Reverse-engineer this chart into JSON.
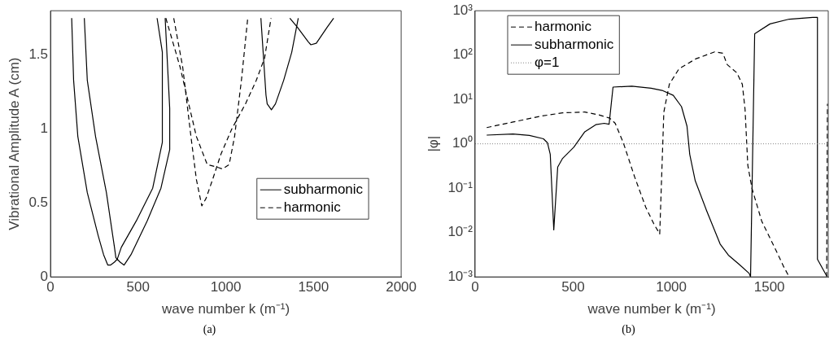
{
  "chart_data": [
    {
      "type": "line",
      "xlabel": "wave number k (m⁻¹)",
      "ylabel": "Vibrational Amplitude A (cm)",
      "xlim": [
        0,
        2000
      ],
      "xticks": [
        0,
        500,
        1000,
        1500,
        2000
      ],
      "ylim": [
        0,
        1.8
      ],
      "yticks": [
        0,
        0.5,
        1,
        1.5
      ],
      "grid": false,
      "legend": "right",
      "marker": "none",
      "annotations": [
        "(a)"
      ],
      "series": [
        {
          "name": "subharmonic",
          "color": "#000000",
          "line_style": "solid",
          "x": [
            121,
            132,
            156,
            210,
            272,
            303,
            327,
            342,
            365,
            381,
            404,
            490,
            583,
            638,
            638,
            608,
            null,
            193,
            210,
            257,
            319,
            350,
            365,
            373,
            397,
            420,
            459,
            552,
            630,
            680,
            680,
            654,
            null,
            1200,
            1229,
            1236,
            1260,
            1283,
            1330,
            1376,
            1413,
            null,
            1365,
            1407,
            1470,
            1485,
            1516,
            1579,
            1615
          ],
          "values": [
            1.75,
            1.33,
            0.95,
            0.57,
            0.28,
            0.15,
            0.08,
            0.08,
            0.1,
            0.12,
            0.2,
            0.38,
            0.6,
            0.91,
            1.52,
            1.75,
            null,
            1.75,
            1.33,
            0.95,
            0.57,
            0.32,
            0.2,
            0.13,
            0.1,
            0.08,
            0.15,
            0.38,
            0.6,
            0.86,
            1.14,
            1.75,
            null,
            1.75,
            1.23,
            1.17,
            1.13,
            1.17,
            1.33,
            1.52,
            1.75,
            null,
            1.75,
            1.69,
            1.59,
            1.57,
            1.58,
            1.69,
            1.75
          ]
        },
        {
          "name": "harmonic",
          "color": "#000000",
          "line_style": "dashed",
          "x": [
            703,
            754,
            801,
            832,
            863,
            887,
            925,
            972,
            1034,
            1112,
            1174,
            1221,
            1258,
            null,
            658,
            739,
            832,
            894,
            956,
            980,
            1019,
            1050,
            1089,
            1125
          ],
          "values": [
            1.75,
            1.42,
            0.95,
            0.66,
            0.48,
            0.53,
            0.66,
            0.83,
            1.0,
            1.17,
            1.33,
            1.48,
            1.75,
            null,
            1.75,
            1.42,
            0.95,
            0.76,
            0.74,
            0.73,
            0.76,
            0.95,
            1.33,
            1.75
          ]
        }
      ]
    },
    {
      "type": "line",
      "xlabel": "wave number k (m⁻¹)",
      "ylabel": "|φ|",
      "log": "y",
      "xlim": [
        0,
        1800
      ],
      "xticks": [
        0,
        500,
        1000,
        1500
      ],
      "ylim": [
        0.001,
        1000
      ],
      "yticks": [
        {
          "value": 0.001,
          "label": "10⁻³"
        },
        {
          "value": 0.01,
          "label": "10⁻²"
        },
        {
          "value": 0.1,
          "label": "10⁻¹"
        },
        {
          "value": 1,
          "label": "10⁰"
        },
        {
          "value": 10,
          "label": "10¹"
        },
        {
          "value": 100,
          "label": "10²"
        },
        {
          "value": 1000,
          "label": "10³"
        }
      ],
      "grid": false,
      "legend": "top left",
      "marker": "none",
      "annotations": [
        "(b)"
      ],
      "ref_lines": [
        {
          "axis": "y",
          "value": 1,
          "label": "φ=1",
          "color": "#808080",
          "line_style": "dotted"
        }
      ],
      "series": [
        {
          "name": "harmonic",
          "color": "#000000",
          "line_style": "dashed",
          "x": [
            59,
            193,
            334,
            446,
            559,
            630,
            686,
            714,
            756,
            813,
            870,
            912,
            941,
            962,
            990,
            1039,
            1124,
            1221,
            1263,
            1285,
            1334,
            1362,
            1376,
            1390,
            1411,
            1461,
            1531,
            1573,
            1601,
            null,
            1792,
            1796
          ],
          "values": [
            2.32,
            3.1,
            4.2,
            5.0,
            5.2,
            4.5,
            3.8,
            2.9,
            1.04,
            0.18,
            0.037,
            0.0154,
            0.0093,
            5.2,
            22,
            49,
            82,
            118,
            110,
            61,
            40,
            22,
            6,
            0.33,
            0.1,
            0.018,
            0.0042,
            0.0017,
            0.001,
            null,
            0.001,
            8
          ]
        },
        {
          "name": "subharmonic",
          "color": "#000000",
          "line_style": "solid",
          "x": [
            59,
            193,
            277,
            348,
            369,
            383,
            401,
            421,
            446,
            503,
            559,
            615,
            658,
            683,
            703,
            799,
            897,
            953,
            1010,
            1052,
            1080,
            1094,
            1122,
            1179,
            1249,
            1291,
            1347,
            1397,
            1404,
            1425,
            1503,
            1601,
            1721,
            1745,
            1745,
            1792
          ],
          "values": [
            1.57,
            1.66,
            1.55,
            1.3,
            1.05,
            0.58,
            0.0115,
            0.3,
            0.47,
            0.84,
            1.87,
            2.7,
            2.9,
            2.77,
            19,
            20,
            18,
            16,
            12.4,
            6.9,
            2.5,
            0.58,
            0.147,
            0.032,
            0.0055,
            0.0031,
            0.0019,
            0.0012,
            0.001,
            303,
            505,
            646,
            710,
            710,
            0.0025,
            0.00105
          ]
        }
      ]
    }
  ]
}
